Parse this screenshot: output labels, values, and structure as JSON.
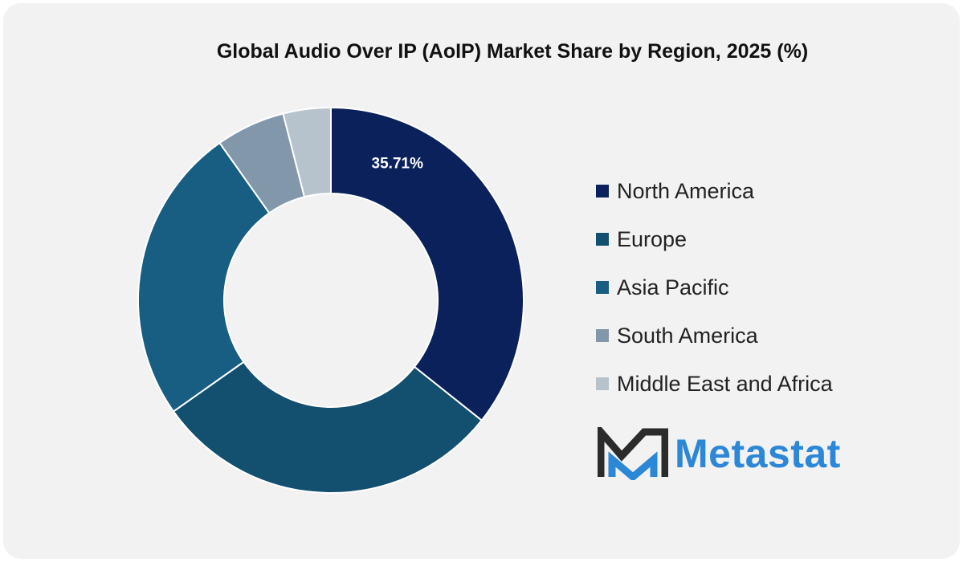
{
  "chart_data": {
    "type": "pie",
    "title": "Global Audio Over IP (AoIP) Market Share by Region, 2025 (%)",
    "donut": true,
    "legend_position": "right",
    "slices": [
      {
        "name": "North America",
        "value": 35.71,
        "label": "35.71%",
        "color": "#0a215b"
      },
      {
        "name": "Europe",
        "value": 29.5,
        "label": "",
        "color": "#13506f"
      },
      {
        "name": "Asia Pacific",
        "value": 25.0,
        "label": "",
        "color": "#175e82"
      },
      {
        "name": "South America",
        "value": 5.8,
        "label": "",
        "color": "#8297aa"
      },
      {
        "name": "Middle East and Africa",
        "value": 3.99,
        "label": "",
        "color": "#b6c2cc"
      }
    ]
  },
  "brand": {
    "name": "Metastat",
    "text_color": "#2c87d6",
    "mark_dark": "#2b2b2b",
    "mark_accent": "#2c87d6"
  }
}
